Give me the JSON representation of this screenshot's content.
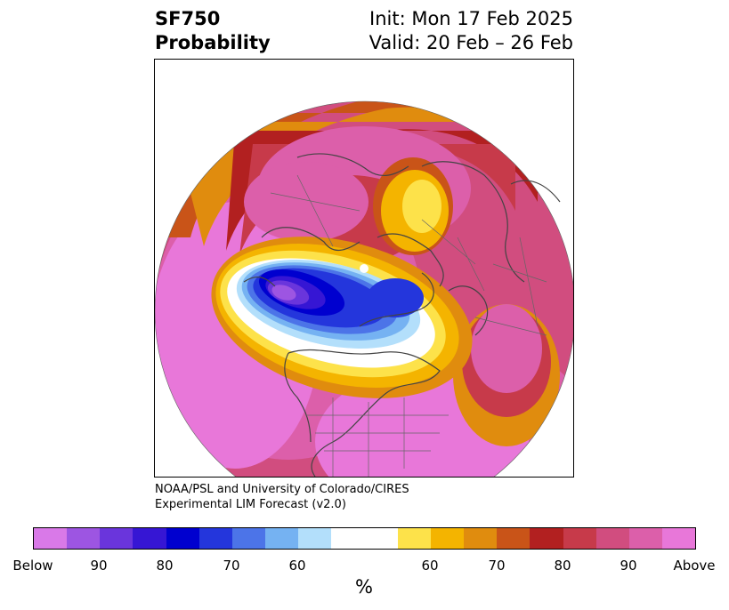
{
  "title": {
    "left_line1": "SF750",
    "left_line2": "Probability",
    "right_line1": "Init: Mon 17 Feb 2025",
    "right_line2": "Valid: 20 Feb – 26 Feb"
  },
  "credit": {
    "line1": "NOAA/PSL and University of Colorado/CIRES",
    "line2": "Experimental LIM Forecast (v2.0)"
  },
  "colorbar": {
    "unit": "%",
    "colors": [
      "#d979e8",
      "#9d55e2",
      "#6a35dc",
      "#3616d4",
      "#0000cf",
      "#2436dc",
      "#4c74e8",
      "#75b2f2",
      "#b3dffb",
      "#ffffff",
      "#ffffff",
      "#fde24a",
      "#f4b400",
      "#e08c0e",
      "#c95418",
      "#b22020",
      "#c73a4a",
      "#d14d7f",
      "#dc5faa",
      "#e877d9"
    ],
    "ticks": [
      "Below",
      "90",
      "80",
      "70",
      "60",
      "60",
      "70",
      "80",
      "90",
      "Above"
    ]
  }
}
